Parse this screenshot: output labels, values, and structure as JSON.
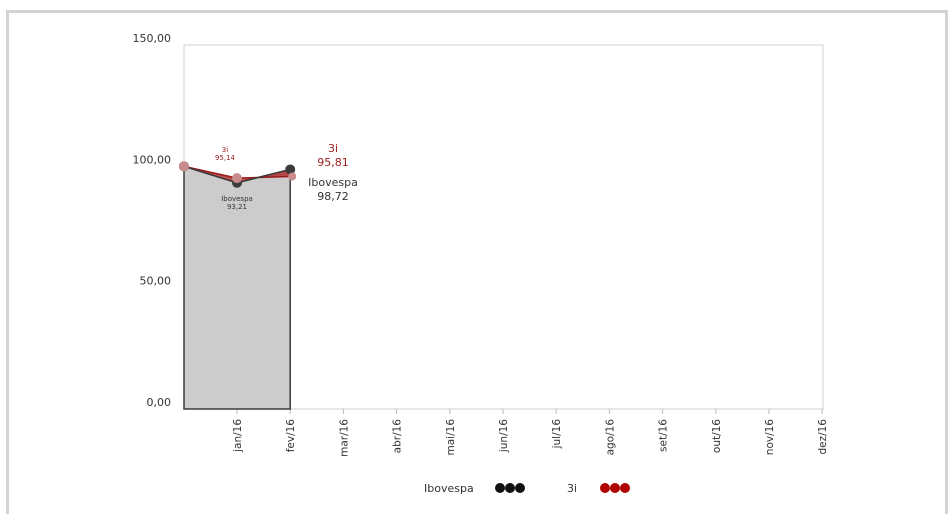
{
  "chart_data": {
    "type": "line",
    "categories": [
      "jan/16",
      "fev/16",
      "mar/16",
      "abr/16",
      "mai/16",
      "jun/16",
      "jul/16",
      "ago/16",
      "set/16",
      "out/16",
      "nov/16",
      "dez/16"
    ],
    "ylim": [
      0,
      150
    ],
    "y_ticks": [
      "0,00",
      "50,00",
      "100,00",
      "150,00"
    ],
    "grid": false,
    "legend_position": "bottom",
    "series": [
      {
        "name": "Ibovespa",
        "color": "#3a3a3a",
        "area_color": "#cccccc",
        "x": [
          "start",
          "jan/16",
          "fev/16"
        ],
        "values": [
          100,
          93.21,
          98.72
        ],
        "labels": [
          {
            "at": "jan/16",
            "name": "Ibovespa",
            "value": "93,21"
          },
          {
            "at": "fev/16",
            "name": "Ibovespa",
            "value": "98,72"
          }
        ]
      },
      {
        "name": "3i",
        "color": "#9b1b1b",
        "area_color": "#b03030",
        "x": [
          "start",
          "jan/16",
          "fev/16"
        ],
        "values": [
          100,
          95.14,
          95.81
        ],
        "labels": [
          {
            "at": "jan/16",
            "name": "3i",
            "value": "95,14"
          },
          {
            "at": "fev/16",
            "name": "3i",
            "value": "95,81"
          }
        ]
      }
    ]
  }
}
